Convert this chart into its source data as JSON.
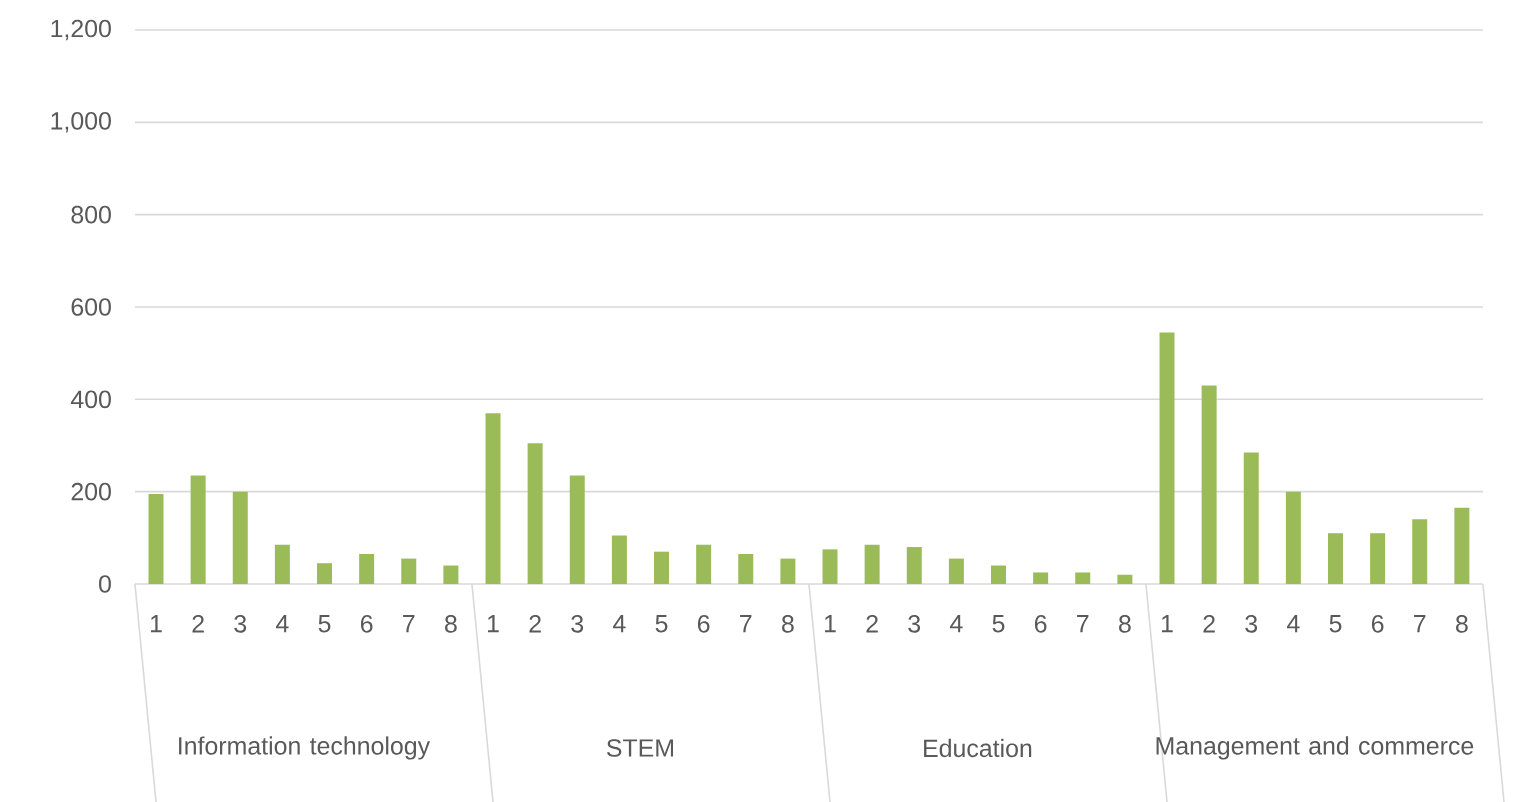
{
  "chart_data": {
    "type": "bar",
    "categories": [
      "1",
      "2",
      "3",
      "4",
      "5",
      "6",
      "7",
      "8",
      "1",
      "2",
      "3",
      "4",
      "5",
      "6",
      "7",
      "8",
      "1",
      "2",
      "3",
      "4",
      "5",
      "6",
      "7",
      "8",
      "1",
      "2",
      "3",
      "4",
      "5",
      "6",
      "7",
      "8"
    ],
    "values": [
      195,
      235,
      200,
      85,
      45,
      65,
      55,
      40,
      370,
      305,
      235,
      105,
      70,
      85,
      65,
      55,
      75,
      85,
      80,
      55,
      40,
      25,
      25,
      20,
      545,
      430,
      285,
      200,
      110,
      110,
      140,
      165
    ],
    "color": "#9bbb59",
    "annotations": [
      "Information technology",
      "STEM",
      "Education",
      "Management and commerce"
    ],
    "ylim": [
      0,
      1200
    ],
    "yticks": [
      0,
      200,
      400,
      600,
      800,
      {
        "value": 1000,
        "label": "1,000"
      },
      {
        "value": 1200,
        "label": "1,200"
      }
    ],
    "grid": "y"
  }
}
